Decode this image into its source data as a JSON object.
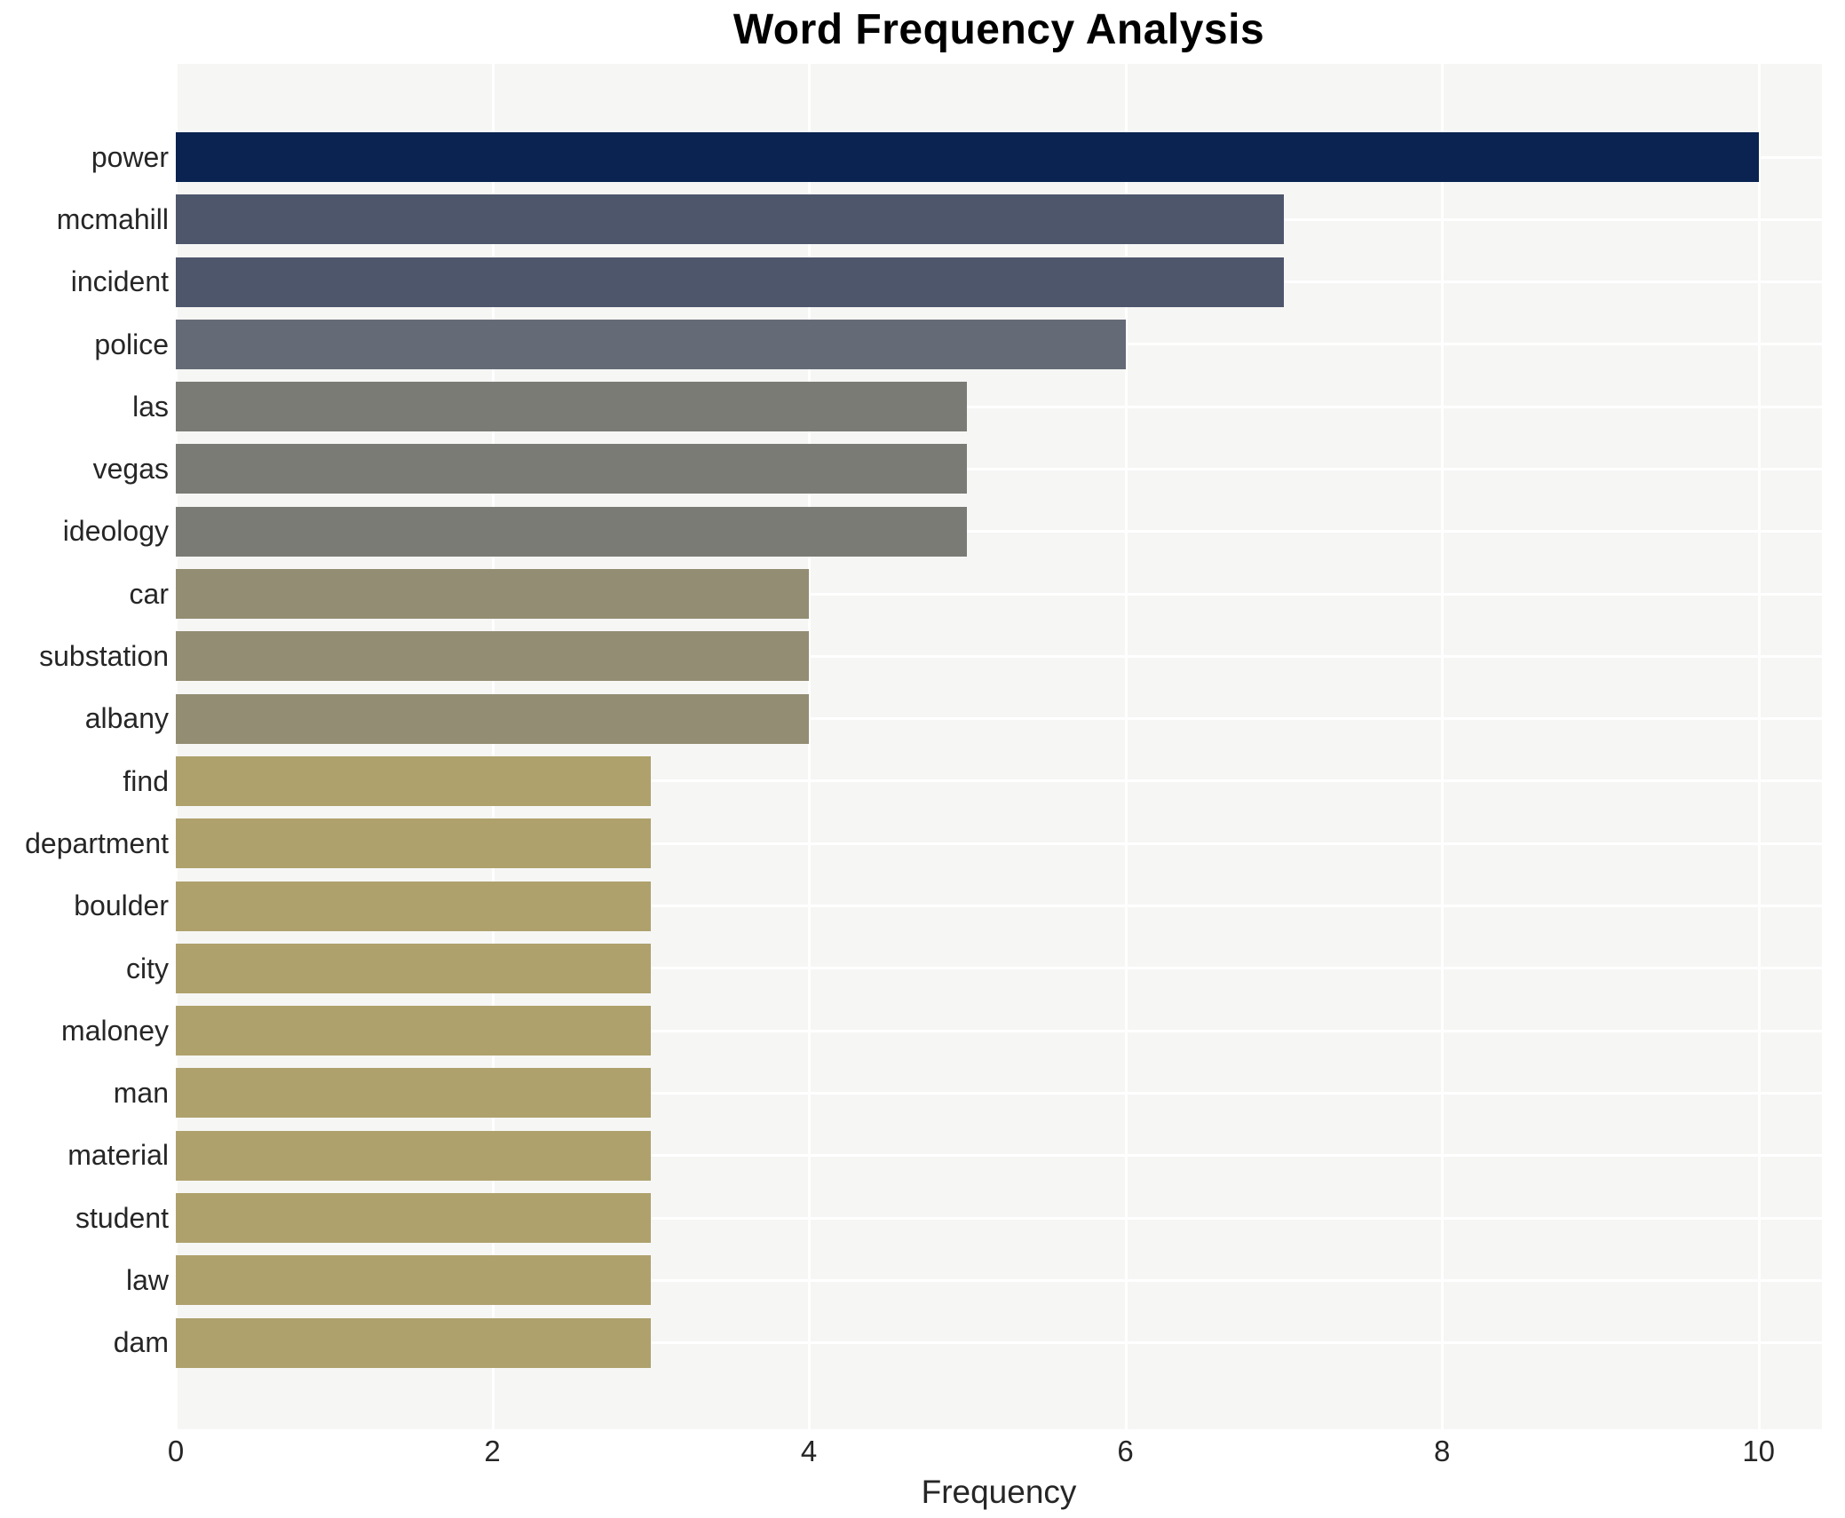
{
  "title": "Word Frequency Analysis",
  "chart_data": {
    "type": "bar",
    "orientation": "horizontal",
    "title": "Word Frequency Analysis",
    "xlabel": "Frequency",
    "ylabel": "",
    "categories": [
      "power",
      "mcmahill",
      "incident",
      "police",
      "las",
      "vegas",
      "ideology",
      "car",
      "substation",
      "albany",
      "find",
      "department",
      "boulder",
      "city",
      "maloney",
      "man",
      "material",
      "student",
      "law",
      "dam"
    ],
    "values": [
      10,
      7,
      7,
      6,
      5,
      5,
      5,
      4,
      4,
      4,
      3,
      3,
      3,
      3,
      3,
      3,
      3,
      3,
      3,
      3
    ],
    "bar_colors": [
      "#0a2351",
      "#4d566b",
      "#4d566b",
      "#656b76",
      "#7b7b76",
      "#7b7b76",
      "#7b7b76",
      "#938d73",
      "#938d73",
      "#938d73",
      "#aea16c",
      "#aea16c",
      "#aea16c",
      "#aea16c",
      "#aea16c",
      "#aea16c",
      "#aea16c",
      "#aea16c",
      "#aea16c",
      "#aea16c"
    ],
    "xticks": [
      0,
      2,
      4,
      6,
      8,
      10
    ],
    "xlim": [
      0,
      10.4
    ],
    "grid": "on",
    "legend": "none",
    "plot_background": "#f6f6f5",
    "gridline_color": "#ffffff",
    "text_color": "#262626",
    "title_color": "#000000"
  }
}
